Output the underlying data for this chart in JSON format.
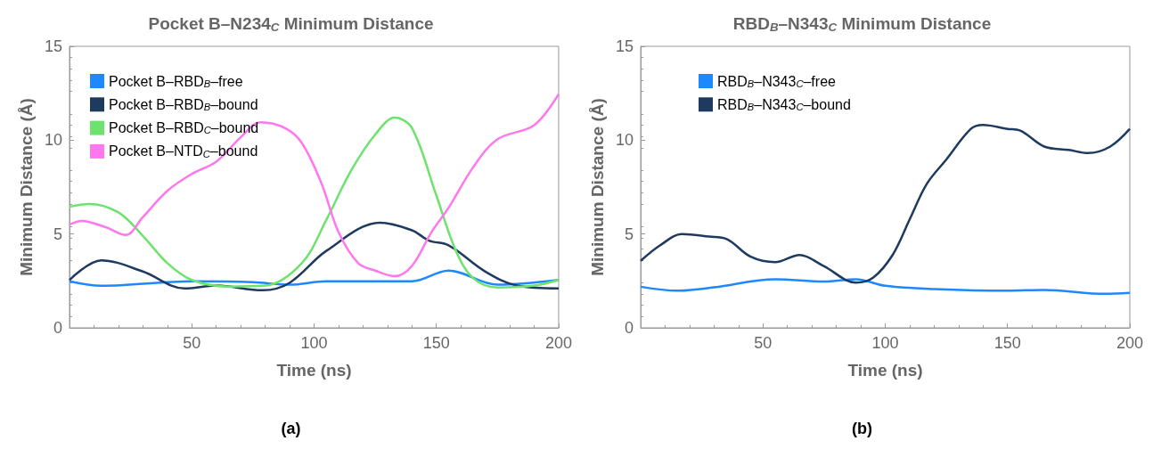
{
  "chart_data": [
    {
      "type": "line",
      "title": "Pocket B–N234$_{C}$ Minimum Distance",
      "xlabel": "Time (ns)",
      "ylabel": "Minimum Distance (Å)",
      "xlim": [
        0,
        200
      ],
      "xticks": [
        50,
        100,
        150,
        200
      ],
      "ylim": [
        0,
        15
      ],
      "yticks": [
        0,
        5,
        10,
        15
      ],
      "grid": false,
      "legend": "top left",
      "marker": "none",
      "annotations": [
        "(a)"
      ],
      "series": [
        {
          "name": "Pocket B–RBD$_{B}$–free",
          "color": "#1e88ff",
          "x": [
            0,
            13,
            50,
            75,
            90,
            105,
            140,
            155,
            175,
            200
          ],
          "values": [
            2.48,
            2.24,
            2.48,
            2.43,
            2.3,
            2.48,
            2.48,
            3.05,
            2.3,
            2.55
          ]
        },
        {
          "name": "Pocket B–RBD$_{B}$–bound",
          "color": "#1f3a5f",
          "x": [
            0,
            13,
            30,
            47,
            60,
            79,
            90,
            105,
            127,
            140,
            147,
            155,
            170,
            183,
            200
          ],
          "values": [
            2.55,
            3.6,
            3.0,
            2.1,
            2.25,
            2.0,
            2.4,
            4.1,
            5.6,
            5.2,
            4.65,
            4.4,
            3.0,
            2.25,
            2.1
          ]
        },
        {
          "name": "Pocket B–RBD$_{C}$–bound",
          "color": "#6ee26e",
          "x": [
            0,
            8,
            20,
            30,
            40,
            50,
            65,
            80,
            95,
            105,
            115,
            125,
            133,
            140,
            150,
            158,
            165,
            175,
            190,
            200
          ],
          "values": [
            6.45,
            6.6,
            6.15,
            4.9,
            3.45,
            2.55,
            2.2,
            2.25,
            3.45,
            5.75,
            8.35,
            10.3,
            11.2,
            10.65,
            7.05,
            4.1,
            2.65,
            2.15,
            2.25,
            2.55
          ]
        },
        {
          "name": "Pocket B–NTD$_{C}$–bound",
          "color": "#ff77ee",
          "x": [
            0,
            5,
            15,
            23,
            30,
            40,
            50,
            60,
            70,
            78,
            88,
            95,
            103,
            110,
            118,
            125,
            133,
            140,
            148,
            155,
            165,
            175,
            190,
            200
          ],
          "values": [
            5.5,
            5.7,
            5.35,
            4.95,
            5.9,
            7.3,
            8.2,
            8.85,
            10.15,
            10.95,
            10.65,
            9.85,
            7.7,
            5.1,
            3.45,
            3.05,
            2.75,
            3.3,
            5.1,
            6.4,
            8.55,
            10.05,
            10.8,
            12.45
          ]
        }
      ]
    },
    {
      "type": "line",
      "title": "RBD$_{B}$–N343$_{C}$ Minimum Distance",
      "xlabel": "Time (ns)",
      "ylabel": "Minimum Distance (Å)",
      "xlim": [
        0,
        200
      ],
      "xticks": [
        50,
        100,
        150,
        200
      ],
      "ylim": [
        0,
        15
      ],
      "yticks": [
        0,
        5,
        10,
        15
      ],
      "grid": false,
      "legend": "top left",
      "marker": "none",
      "annotations": [
        "(b)"
      ],
      "series": [
        {
          "name": "RBD$_{B}$–N343$_{C}$–free",
          "color": "#1e88ff",
          "x": [
            0,
            15,
            30,
            55,
            75,
            88,
            100,
            120,
            150,
            165,
            190,
            200
          ],
          "values": [
            2.19,
            1.98,
            2.16,
            2.59,
            2.47,
            2.59,
            2.24,
            2.07,
            1.98,
            2.02,
            1.81,
            1.86
          ]
        },
        {
          "name": "RBD$_{B}$–N343$_{C}$–bound",
          "color": "#1f3a5f",
          "x": [
            0,
            8,
            17,
            28,
            35,
            45,
            55,
            65,
            75,
            88,
            95,
            103,
            110,
            117,
            125,
            135,
            140,
            150,
            155,
            165,
            175,
            183,
            192,
            200
          ],
          "values": [
            3.57,
            4.4,
            5.0,
            4.86,
            4.74,
            3.79,
            3.5,
            3.88,
            3.28,
            2.41,
            2.67,
            3.88,
            5.78,
            7.67,
            8.97,
            10.6,
            10.81,
            10.6,
            10.52,
            9.66,
            9.48,
            9.31,
            9.66,
            10.6
          ]
        }
      ]
    }
  ]
}
